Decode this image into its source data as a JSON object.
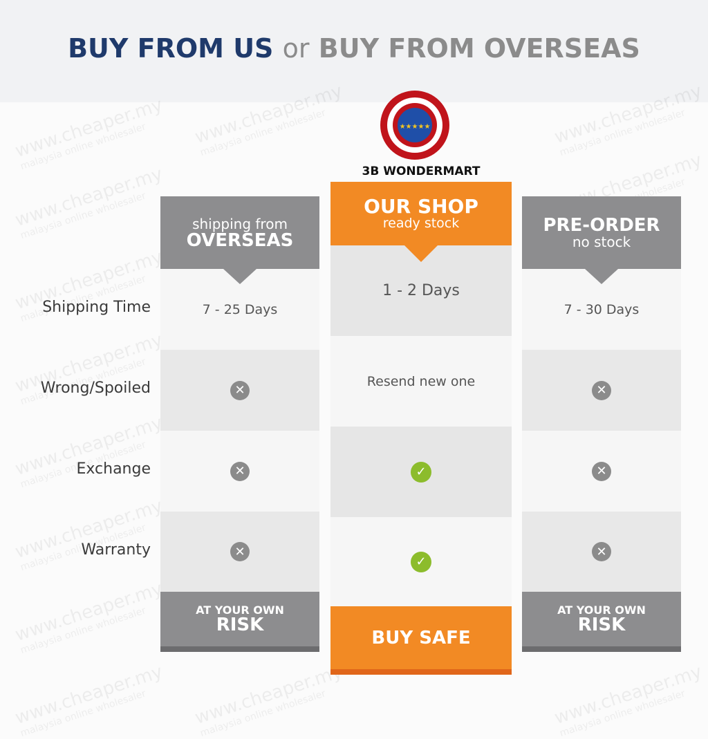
{
  "title": {
    "part1": "BUY FROM US",
    "part2": "or",
    "part3": "BUY FROM OVERSEAS"
  },
  "logo": {
    "name": "3B WONDERMART",
    "stars": "★★★★★"
  },
  "watermark": {
    "line1": "www.cheaper.my",
    "line2": "malaysia online wholesaler"
  },
  "row_labels": [
    "Shipping Time",
    "Wrong/Spoiled",
    "Exchange",
    "Warranty"
  ],
  "columns": [
    {
      "header_small": "shipping from",
      "header_big": "OVERSEAS",
      "shipping": "7 - 25 Days",
      "wrong": "x",
      "exchange": "x",
      "warranty": "x",
      "footer_small": "AT YOUR OWN",
      "footer_big": "RISK"
    },
    {
      "header_big": "OUR SHOP",
      "header_small": "ready stock",
      "shipping": "1 - 2 Days",
      "wrong": "Resend new one",
      "exchange": "check",
      "warranty": "check",
      "footer_big": "BUY SAFE"
    },
    {
      "header_big": "PRE-ORDER",
      "header_small": "no stock",
      "shipping": "7 - 30 Days",
      "wrong": "x",
      "exchange": "x",
      "warranty": "x",
      "footer_small": "AT YOUR OWN",
      "footer_big": "RISK"
    }
  ],
  "icons": {
    "x": "✕",
    "check": "✓"
  },
  "colors": {
    "brand_blue": "#1f3a6b",
    "orange": "#f28a24",
    "gray": "#8d8d8f",
    "green": "#8cbc2c"
  }
}
